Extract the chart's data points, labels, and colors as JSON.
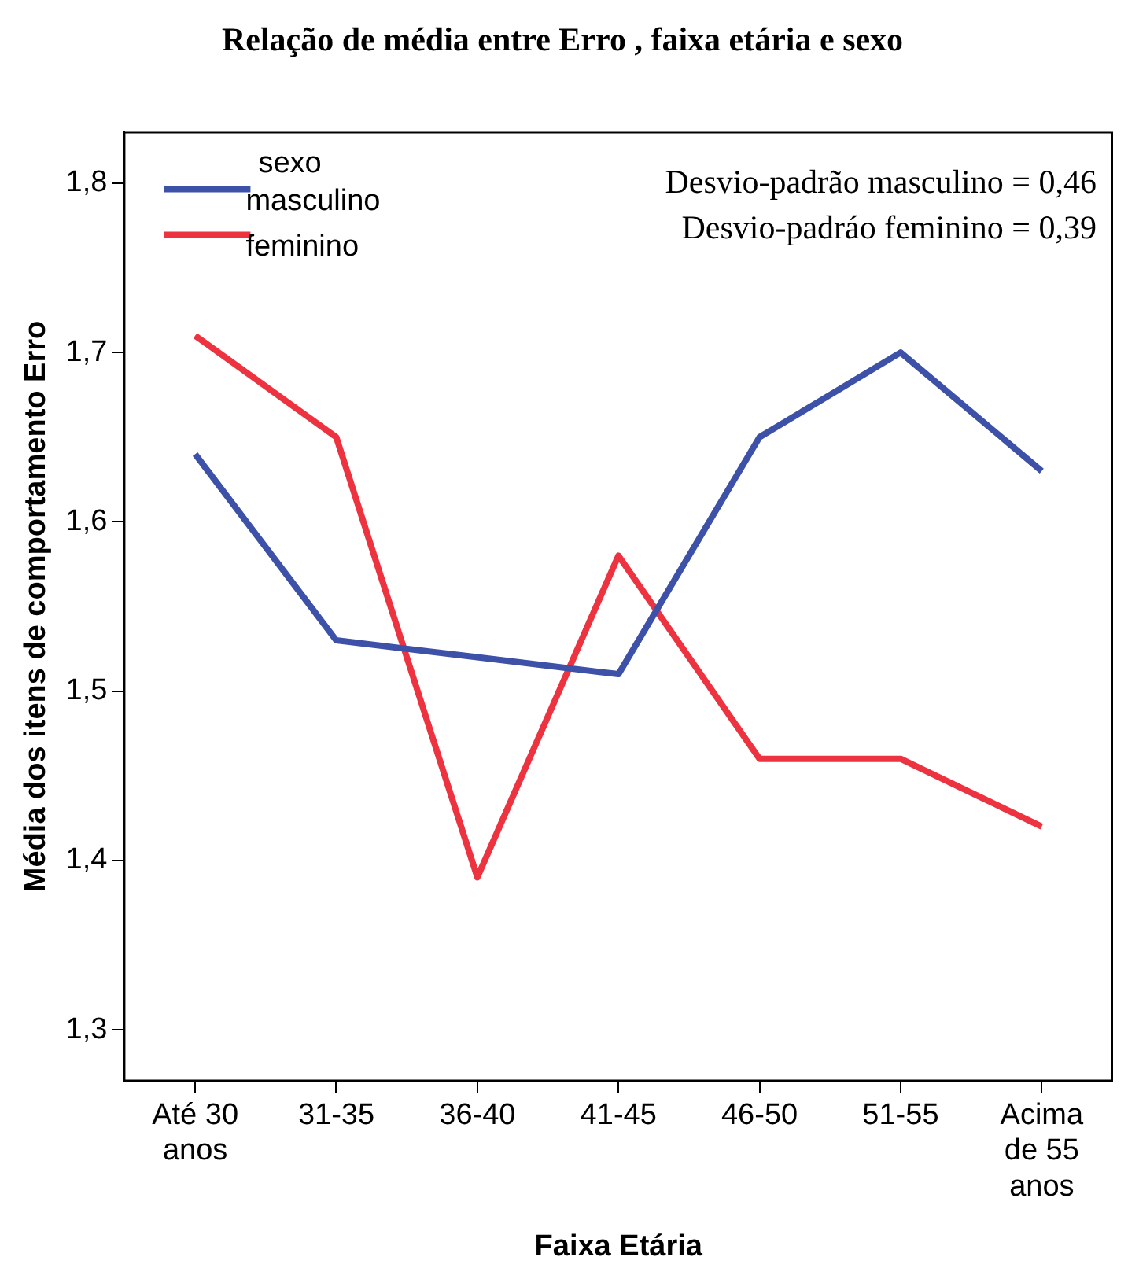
{
  "chart_data": {
    "type": "line",
    "title": "Relação de média entre Erro , faixa etária e sexo",
    "xlabel": "Faixa Etária",
    "ylabel": "Média dos itens de comportamento Erro",
    "legend_title": "sexo",
    "categories": [
      "Até 30 anos",
      "31-35",
      "36-40",
      "41-45",
      "46-50",
      "51-55",
      "Acima de 55 anos"
    ],
    "series": [
      {
        "name": "masculino",
        "color": "#3d51a8",
        "values": [
          1.64,
          1.53,
          1.52,
          1.51,
          1.65,
          1.7,
          1.63
        ]
      },
      {
        "name": "feminino",
        "color": "#ee3340",
        "values": [
          1.71,
          1.65,
          1.39,
          1.58,
          1.46,
          1.46,
          1.42
        ]
      }
    ],
    "ylim": [
      1.27,
      1.83
    ],
    "yticks": [
      {
        "value": 1.3,
        "label": "1,3"
      },
      {
        "value": 1.4,
        "label": "1,4"
      },
      {
        "value": 1.5,
        "label": "1,5"
      },
      {
        "value": 1.6,
        "label": "1,6"
      },
      {
        "value": 1.7,
        "label": "1,7"
      },
      {
        "value": 1.8,
        "label": "1,8"
      }
    ],
    "annotations": [
      "Desvio-padrão masculino = 0,46",
      "Desvio-padráo feminino = 0,39"
    ],
    "grid": false,
    "legend": "top left",
    "marker": "none",
    "line_style": "solid"
  }
}
